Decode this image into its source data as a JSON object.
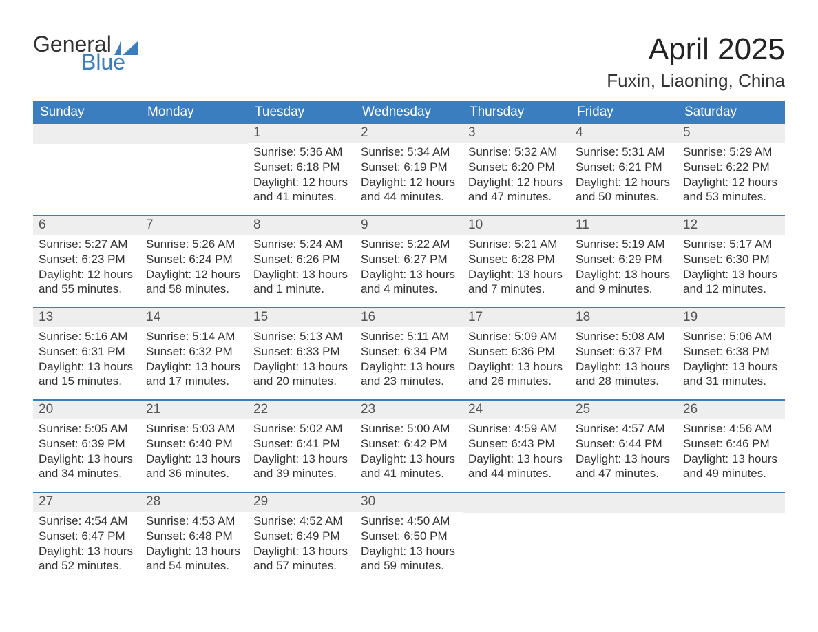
{
  "logo": {
    "text_top": "General",
    "text_bottom": "Blue",
    "flag_color": "#3b7ebf"
  },
  "header": {
    "title": "April 2025",
    "location": "Fuxin, Liaoning, China"
  },
  "colors": {
    "header_bar": "#3b7ebf",
    "day_number_bg": "#eeeeee",
    "text": "#333333",
    "background": "#ffffff",
    "week_divider": "#3b7ebf"
  },
  "typography": {
    "title_fontsize_pt": 33,
    "location_fontsize_pt": 20,
    "weekday_fontsize_pt": 14,
    "body_fontsize_pt": 13
  },
  "structure": {
    "type": "table",
    "columns": 7,
    "rows": 5
  },
  "weekdays": [
    "Sunday",
    "Monday",
    "Tuesday",
    "Wednesday",
    "Thursday",
    "Friday",
    "Saturday"
  ],
  "weeks": [
    [
      null,
      null,
      {
        "day": "1",
        "sunrise": "Sunrise: 5:36 AM",
        "sunset": "Sunset: 6:18 PM",
        "daylight1": "Daylight: 12 hours",
        "daylight2": "and 41 minutes."
      },
      {
        "day": "2",
        "sunrise": "Sunrise: 5:34 AM",
        "sunset": "Sunset: 6:19 PM",
        "daylight1": "Daylight: 12 hours",
        "daylight2": "and 44 minutes."
      },
      {
        "day": "3",
        "sunrise": "Sunrise: 5:32 AM",
        "sunset": "Sunset: 6:20 PM",
        "daylight1": "Daylight: 12 hours",
        "daylight2": "and 47 minutes."
      },
      {
        "day": "4",
        "sunrise": "Sunrise: 5:31 AM",
        "sunset": "Sunset: 6:21 PM",
        "daylight1": "Daylight: 12 hours",
        "daylight2": "and 50 minutes."
      },
      {
        "day": "5",
        "sunrise": "Sunrise: 5:29 AM",
        "sunset": "Sunset: 6:22 PM",
        "daylight1": "Daylight: 12 hours",
        "daylight2": "and 53 minutes."
      }
    ],
    [
      {
        "day": "6",
        "sunrise": "Sunrise: 5:27 AM",
        "sunset": "Sunset: 6:23 PM",
        "daylight1": "Daylight: 12 hours",
        "daylight2": "and 55 minutes."
      },
      {
        "day": "7",
        "sunrise": "Sunrise: 5:26 AM",
        "sunset": "Sunset: 6:24 PM",
        "daylight1": "Daylight: 12 hours",
        "daylight2": "and 58 minutes."
      },
      {
        "day": "8",
        "sunrise": "Sunrise: 5:24 AM",
        "sunset": "Sunset: 6:26 PM",
        "daylight1": "Daylight: 13 hours",
        "daylight2": "and 1 minute."
      },
      {
        "day": "9",
        "sunrise": "Sunrise: 5:22 AM",
        "sunset": "Sunset: 6:27 PM",
        "daylight1": "Daylight: 13 hours",
        "daylight2": "and 4 minutes."
      },
      {
        "day": "10",
        "sunrise": "Sunrise: 5:21 AM",
        "sunset": "Sunset: 6:28 PM",
        "daylight1": "Daylight: 13 hours",
        "daylight2": "and 7 minutes."
      },
      {
        "day": "11",
        "sunrise": "Sunrise: 5:19 AM",
        "sunset": "Sunset: 6:29 PM",
        "daylight1": "Daylight: 13 hours",
        "daylight2": "and 9 minutes."
      },
      {
        "day": "12",
        "sunrise": "Sunrise: 5:17 AM",
        "sunset": "Sunset: 6:30 PM",
        "daylight1": "Daylight: 13 hours",
        "daylight2": "and 12 minutes."
      }
    ],
    [
      {
        "day": "13",
        "sunrise": "Sunrise: 5:16 AM",
        "sunset": "Sunset: 6:31 PM",
        "daylight1": "Daylight: 13 hours",
        "daylight2": "and 15 minutes."
      },
      {
        "day": "14",
        "sunrise": "Sunrise: 5:14 AM",
        "sunset": "Sunset: 6:32 PM",
        "daylight1": "Daylight: 13 hours",
        "daylight2": "and 17 minutes."
      },
      {
        "day": "15",
        "sunrise": "Sunrise: 5:13 AM",
        "sunset": "Sunset: 6:33 PM",
        "daylight1": "Daylight: 13 hours",
        "daylight2": "and 20 minutes."
      },
      {
        "day": "16",
        "sunrise": "Sunrise: 5:11 AM",
        "sunset": "Sunset: 6:34 PM",
        "daylight1": "Daylight: 13 hours",
        "daylight2": "and 23 minutes."
      },
      {
        "day": "17",
        "sunrise": "Sunrise: 5:09 AM",
        "sunset": "Sunset: 6:36 PM",
        "daylight1": "Daylight: 13 hours",
        "daylight2": "and 26 minutes."
      },
      {
        "day": "18",
        "sunrise": "Sunrise: 5:08 AM",
        "sunset": "Sunset: 6:37 PM",
        "daylight1": "Daylight: 13 hours",
        "daylight2": "and 28 minutes."
      },
      {
        "day": "19",
        "sunrise": "Sunrise: 5:06 AM",
        "sunset": "Sunset: 6:38 PM",
        "daylight1": "Daylight: 13 hours",
        "daylight2": "and 31 minutes."
      }
    ],
    [
      {
        "day": "20",
        "sunrise": "Sunrise: 5:05 AM",
        "sunset": "Sunset: 6:39 PM",
        "daylight1": "Daylight: 13 hours",
        "daylight2": "and 34 minutes."
      },
      {
        "day": "21",
        "sunrise": "Sunrise: 5:03 AM",
        "sunset": "Sunset: 6:40 PM",
        "daylight1": "Daylight: 13 hours",
        "daylight2": "and 36 minutes."
      },
      {
        "day": "22",
        "sunrise": "Sunrise: 5:02 AM",
        "sunset": "Sunset: 6:41 PM",
        "daylight1": "Daylight: 13 hours",
        "daylight2": "and 39 minutes."
      },
      {
        "day": "23",
        "sunrise": "Sunrise: 5:00 AM",
        "sunset": "Sunset: 6:42 PM",
        "daylight1": "Daylight: 13 hours",
        "daylight2": "and 41 minutes."
      },
      {
        "day": "24",
        "sunrise": "Sunrise: 4:59 AM",
        "sunset": "Sunset: 6:43 PM",
        "daylight1": "Daylight: 13 hours",
        "daylight2": "and 44 minutes."
      },
      {
        "day": "25",
        "sunrise": "Sunrise: 4:57 AM",
        "sunset": "Sunset: 6:44 PM",
        "daylight1": "Daylight: 13 hours",
        "daylight2": "and 47 minutes."
      },
      {
        "day": "26",
        "sunrise": "Sunrise: 4:56 AM",
        "sunset": "Sunset: 6:46 PM",
        "daylight1": "Daylight: 13 hours",
        "daylight2": "and 49 minutes."
      }
    ],
    [
      {
        "day": "27",
        "sunrise": "Sunrise: 4:54 AM",
        "sunset": "Sunset: 6:47 PM",
        "daylight1": "Daylight: 13 hours",
        "daylight2": "and 52 minutes."
      },
      {
        "day": "28",
        "sunrise": "Sunrise: 4:53 AM",
        "sunset": "Sunset: 6:48 PM",
        "daylight1": "Daylight: 13 hours",
        "daylight2": "and 54 minutes."
      },
      {
        "day": "29",
        "sunrise": "Sunrise: 4:52 AM",
        "sunset": "Sunset: 6:49 PM",
        "daylight1": "Daylight: 13 hours",
        "daylight2": "and 57 minutes."
      },
      {
        "day": "30",
        "sunrise": "Sunrise: 4:50 AM",
        "sunset": "Sunset: 6:50 PM",
        "daylight1": "Daylight: 13 hours",
        "daylight2": "and 59 minutes."
      },
      null,
      null,
      null
    ]
  ]
}
